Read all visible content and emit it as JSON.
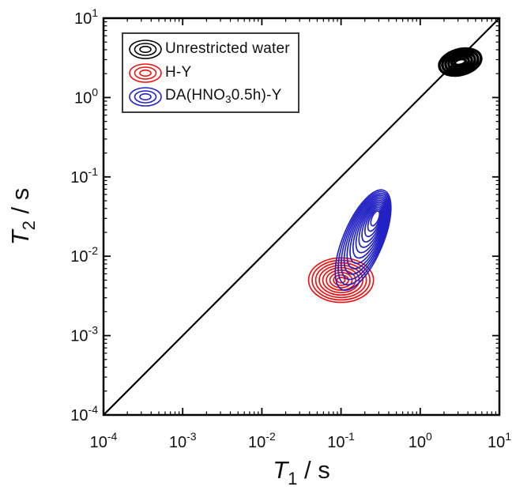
{
  "page": {
    "background": "#ffffff"
  },
  "chart_data": {
    "type": "contour",
    "description": "T1-T2 relaxation time correlation map, log-log axes, with T1 = T2 diagonal reference line",
    "xlabel": {
      "symbol": "T",
      "subscript": "1",
      "unit": " / s"
    },
    "ylabel": {
      "symbol": "T",
      "subscript": "2",
      "unit": " / s"
    },
    "x_scale": "log",
    "y_scale": "log",
    "xlim": [
      0.0001,
      10
    ],
    "ylim": [
      0.0001,
      10
    ],
    "x_tick_exponents": [
      -4,
      -3,
      -2,
      -1,
      0,
      1
    ],
    "y_tick_exponents": [
      -4,
      -3,
      -2,
      -1,
      0,
      1
    ],
    "grid": false,
    "legend": {
      "position": "upper-left",
      "border_color": "#3c3c3c"
    },
    "diagonal_line": {
      "from": [
        0.0001,
        0.0001
      ],
      "to": [
        10,
        10
      ],
      "note": "T1 = T2 reference line",
      "color": "#000000"
    },
    "series": [
      {
        "name": "Unrestricted water",
        "label_parts": [
          {
            "text": "Unrestricted water"
          }
        ],
        "color": "#000000",
        "peak": {
          "T1": 3.2,
          "T2": 2.8
        },
        "core": {
          "T1": 3.2,
          "T2": 2.8
        },
        "outer_radius_decades": {
          "rx": 0.27,
          "ry": 0.16
        },
        "inner_radius_decades": {
          "rx": 0.07,
          "ry": 0.035
        },
        "tilt_deg": -15,
        "n_contours": 6,
        "stroke_width": 3.4
      },
      {
        "name": "H-Y",
        "label_parts": [
          {
            "text": "H-Y"
          }
        ],
        "color": "#ee1111",
        "peak": {
          "T1": 0.1,
          "T2": 0.005
        },
        "core": {
          "T1": 0.1,
          "T2": 0.005
        },
        "outer_radius_decades": {
          "rx": 0.41,
          "ry": 0.28
        },
        "inner_radius_decades": {
          "rx": 0.05,
          "ry": 0.034
        },
        "tilt_deg": 0,
        "n_contours": 9,
        "stroke_width": 1.7
      },
      {
        "name": "DA(HNO3 0.5h)-Y",
        "label_parts": [
          {
            "text": "DA(HNO"
          },
          {
            "text": "3",
            "sub": true
          },
          {
            "text": "0.5h)-Y"
          }
        ],
        "color": "#2121c4",
        "peak": {
          "T1": 0.19,
          "T2": 0.016
        },
        "core": {
          "T1": 0.27,
          "T2": 0.03
        },
        "outer_radius_decades": {
          "rx": 0.68,
          "ry": 0.25
        },
        "inner_radius_decades": {
          "rx": 0.1,
          "ry": 0.042
        },
        "tilt_deg": -67,
        "n_contours": 13,
        "stroke_width": 1.7
      }
    ]
  }
}
